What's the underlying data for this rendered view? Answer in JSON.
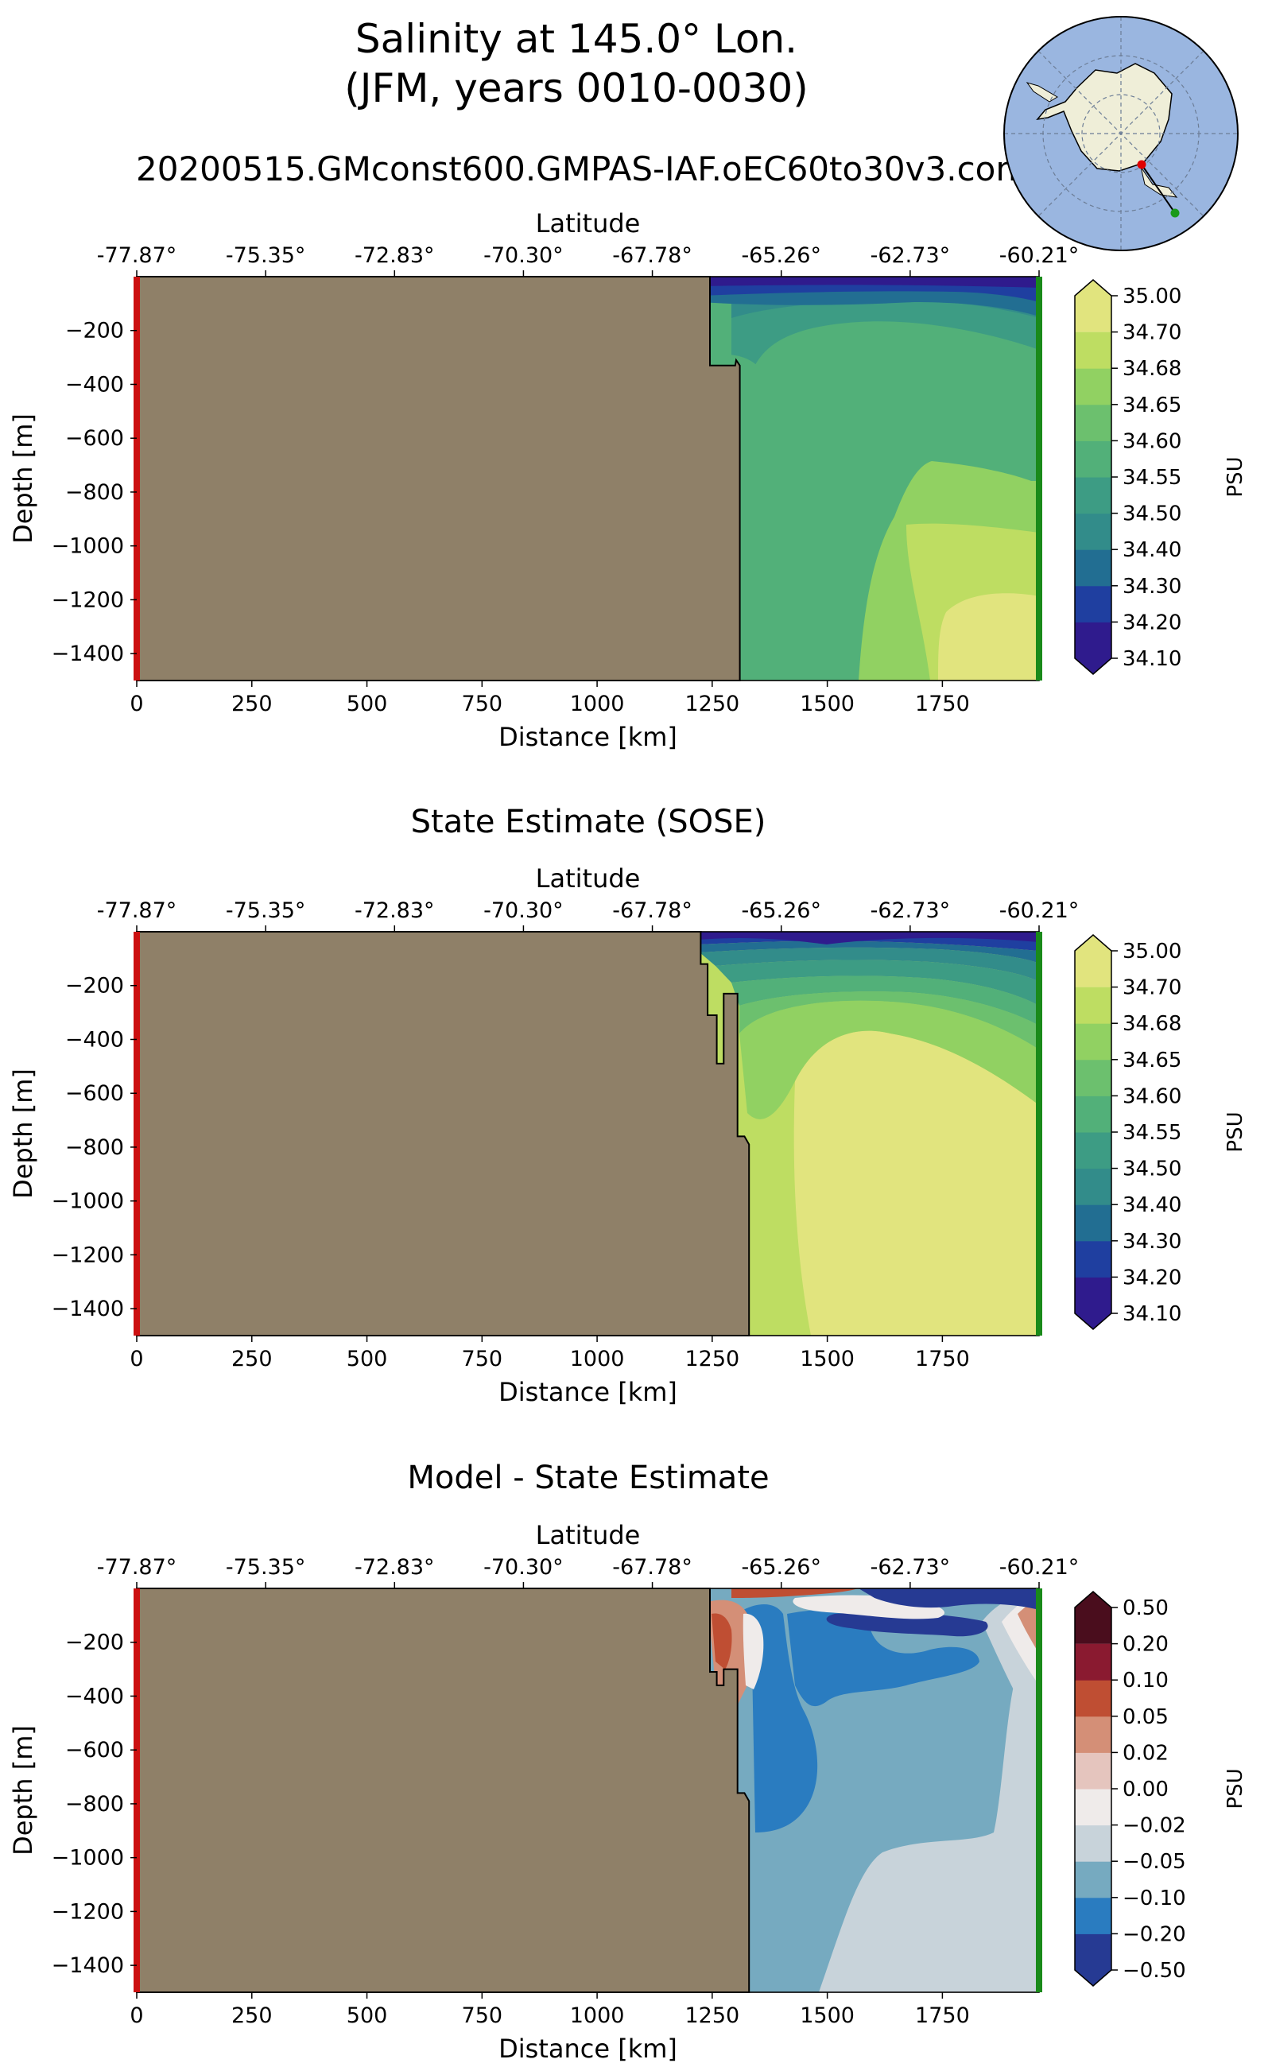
{
  "figure": {
    "title_line1": "Salinity at 145.0° Lon.",
    "title_line2": "(JFM, years 0010-0030)",
    "run_name": "20200515.GMconst600.GMPAS-IAF.oEC60to30v3.con"
  },
  "locator_map": {
    "region": "Antarctica south polar stereographic",
    "start_point": {
      "lat": -77.87,
      "lon": 145.0,
      "color": "#e00000"
    },
    "end_point": {
      "lat": -60.21,
      "lon": 145.0,
      "color": "#1a9a1a"
    },
    "ocean_color": "#9ab6e0",
    "land_color": "#efeed8"
  },
  "chart_data": [
    {
      "type": "heatmap",
      "title": "",
      "xlabel": "Distance [km]",
      "ylabel": "Depth [m]",
      "top_xlabel": "Latitude",
      "xlim": [
        0,
        1960
      ],
      "ylim": [
        -1500,
        0
      ],
      "x_ticks": [
        0,
        250,
        500,
        750,
        1000,
        1250,
        1500,
        1750
      ],
      "y_ticks": [
        -200,
        -400,
        -600,
        -800,
        -1000,
        -1200,
        -1400
      ],
      "lat_ticks": [
        "-77.87°",
        "-75.35°",
        "-72.83°",
        "-70.30°",
        "-67.78°",
        "-65.26°",
        "-62.73°",
        "-60.21°"
      ],
      "colorbar_label": "PSU",
      "colorbar_levels": [
        "34.10",
        "34.20",
        "34.30",
        "34.40",
        "34.50",
        "34.55",
        "34.60",
        "34.65",
        "34.68",
        "34.70",
        "35.00"
      ],
      "colorbar_colors": [
        "#2f1b8d",
        "#1f3fa0",
        "#226e92",
        "#328c8a",
        "#3d9c84",
        "#52b079",
        "#6cc06e",
        "#91d162",
        "#bedd62",
        "#e1e47e"
      ],
      "land_color": "#8f8068",
      "bathymetry": [
        [
          1245,
          0
        ],
        [
          1245,
          -330
        ],
        [
          1300,
          -330
        ],
        [
          1302,
          -310
        ],
        [
          1310,
          -330
        ],
        [
          1310,
          -1500
        ]
      ],
      "field": {
        "key_values": [
          {
            "x": 1500,
            "depth": -20,
            "value": 34.1
          },
          {
            "x": 1500,
            "depth": -150,
            "value": 34.45
          },
          {
            "x": 1400,
            "depth": -600,
            "value": 34.52
          },
          {
            "x": 1700,
            "depth": -800,
            "value": 34.65
          },
          {
            "x": 1850,
            "depth": -1350,
            "value": 34.72
          }
        ]
      },
      "edge_markers": {
        "left_color": "#cc1010",
        "right_color": "#1a8a1a"
      }
    },
    {
      "type": "heatmap",
      "title": "State Estimate (SOSE)",
      "xlabel": "Distance [km]",
      "ylabel": "Depth [m]",
      "top_xlabel": "Latitude",
      "xlim": [
        0,
        1960
      ],
      "ylim": [
        -1500,
        0
      ],
      "x_ticks": [
        0,
        250,
        500,
        750,
        1000,
        1250,
        1500,
        1750
      ],
      "y_ticks": [
        -200,
        -400,
        -600,
        -800,
        -1000,
        -1200,
        -1400
      ],
      "lat_ticks": [
        "-77.87°",
        "-75.35°",
        "-72.83°",
        "-70.30°",
        "-67.78°",
        "-65.26°",
        "-62.73°",
        "-60.21°"
      ],
      "colorbar_label": "PSU",
      "colorbar_levels": [
        "34.10",
        "34.20",
        "34.30",
        "34.40",
        "34.50",
        "34.55",
        "34.60",
        "34.65",
        "34.68",
        "34.70",
        "35.00"
      ],
      "colorbar_colors": [
        "#2f1b8d",
        "#1f3fa0",
        "#226e92",
        "#328c8a",
        "#3d9c84",
        "#52b079",
        "#6cc06e",
        "#91d162",
        "#bedd62",
        "#e1e47e"
      ],
      "land_color": "#8f8068",
      "bathymetry": [
        [
          1225,
          0
        ],
        [
          1225,
          -120
        ],
        [
          1240,
          -120
        ],
        [
          1240,
          -310
        ],
        [
          1260,
          -310
        ],
        [
          1260,
          -490
        ],
        [
          1275,
          -490
        ],
        [
          1275,
          -230
        ],
        [
          1305,
          -230
        ],
        [
          1305,
          -760
        ],
        [
          1320,
          -760
        ],
        [
          1330,
          -790
        ],
        [
          1330,
          -1500
        ]
      ],
      "field": {
        "key_values": [
          {
            "x": 1600,
            "depth": -20,
            "value": 34.1
          },
          {
            "x": 1500,
            "depth": -200,
            "value": 34.55
          },
          {
            "x": 1650,
            "depth": -1000,
            "value": 34.72
          },
          {
            "x": 1400,
            "depth": -1300,
            "value": 34.68
          }
        ]
      },
      "edge_markers": {
        "left_color": "#cc1010",
        "right_color": "#1a8a1a"
      }
    },
    {
      "type": "heatmap",
      "title": "Model - State Estimate",
      "xlabel": "Distance [km]",
      "ylabel": "Depth [m]",
      "top_xlabel": "Latitude",
      "xlim": [
        0,
        1960
      ],
      "ylim": [
        -1500,
        0
      ],
      "x_ticks": [
        0,
        250,
        500,
        750,
        1000,
        1250,
        1500,
        1750
      ],
      "y_ticks": [
        -200,
        -400,
        -600,
        -800,
        -1000,
        -1200,
        -1400
      ],
      "lat_ticks": [
        "-77.87°",
        "-75.35°",
        "-72.83°",
        "-70.30°",
        "-67.78°",
        "-65.26°",
        "-62.73°",
        "-60.21°"
      ],
      "colorbar_label": "PSU",
      "colorbar_levels": [
        "−0.50",
        "−0.20",
        "−0.10",
        "−0.05",
        "−0.02",
        "0.00",
        "0.02",
        "0.05",
        "0.10",
        "0.20",
        "0.50"
      ],
      "colorbar_colors": [
        "#263a93",
        "#2a7cc0",
        "#76aac0",
        "#c8d3da",
        "#efebea",
        "#e5c5be",
        "#d48f77",
        "#bf4e33",
        "#8a1a30",
        "#4a0d1d"
      ],
      "land_color": "#8f8068",
      "bathymetry": [
        [
          1245,
          0
        ],
        [
          1245,
          -310
        ],
        [
          1260,
          -310
        ],
        [
          1260,
          -360
        ],
        [
          1275,
          -360
        ],
        [
          1275,
          -300
        ],
        [
          1305,
          -300
        ],
        [
          1305,
          -760
        ],
        [
          1320,
          -760
        ],
        [
          1330,
          -790
        ],
        [
          1330,
          -1500
        ]
      ],
      "field": {
        "key_values": [
          {
            "x": 1290,
            "depth": -200,
            "value": 0.15
          },
          {
            "x": 1450,
            "depth": -500,
            "value": -0.15
          },
          {
            "x": 1700,
            "depth": -800,
            "value": -0.07
          },
          {
            "x": 1800,
            "depth": -1300,
            "value": -0.03
          },
          {
            "x": 1900,
            "depth": -250,
            "value": 0.05
          }
        ]
      },
      "edge_markers": {
        "left_color": "#cc1010",
        "right_color": "#1a8a1a"
      }
    }
  ]
}
